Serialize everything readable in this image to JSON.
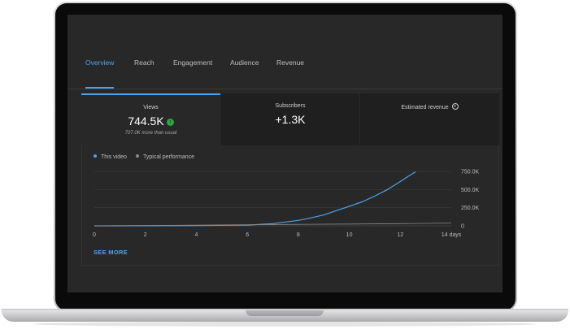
{
  "tabs": [
    "Overview",
    "Reach",
    "Engagement",
    "Audience",
    "Revenue"
  ],
  "active_tab": "Overview",
  "metrics": {
    "views": {
      "label": "Views",
      "value": "744.5K",
      "sub": "707.0K more than usual"
    },
    "subscribers": {
      "label": "Subscribers",
      "value": "+1.3K"
    },
    "revenue": {
      "label": "Estimated revenue"
    }
  },
  "legend": {
    "this_video": "This video",
    "typical": "Typical performance"
  },
  "see_more": "SEE MORE",
  "colors": {
    "accent": "#4aa3ee",
    "up": "#2ba640",
    "typical": "#8a8a8a"
  },
  "icons": {
    "up": "arrow-up-icon",
    "clock": "clock-icon"
  },
  "chart_data": {
    "type": "line",
    "x_tick_labels": [
      "0",
      "2",
      "4",
      "6",
      "8",
      "10",
      "12",
      "14 days"
    ],
    "y_tick_labels": [
      "750.0K",
      "500.0K",
      "250.0K",
      "0"
    ],
    "xlim": [
      0,
      14
    ],
    "ylim": [
      0,
      750000
    ],
    "grid": true,
    "legend_position": "top-left",
    "series": [
      {
        "name": "This video",
        "color": "#4aa3ee",
        "x": [
          0,
          2,
          4,
          6,
          7,
          8,
          8.5,
          9,
          9.5,
          10,
          10.5,
          11,
          11.5,
          12,
          12.3,
          12.6
        ],
        "y": [
          0,
          1000,
          3000,
          10000,
          30000,
          75000,
          110000,
          150000,
          210000,
          270000,
          330000,
          410000,
          500000,
          610000,
          680000,
          744500
        ]
      },
      {
        "name": "Typical performance",
        "color": "#8a8a8a",
        "x": [
          0,
          2,
          4,
          6,
          8,
          10,
          12,
          14
        ],
        "y": [
          0,
          5000,
          10000,
          15000,
          20000,
          25000,
          30000,
          37500
        ]
      }
    ]
  }
}
